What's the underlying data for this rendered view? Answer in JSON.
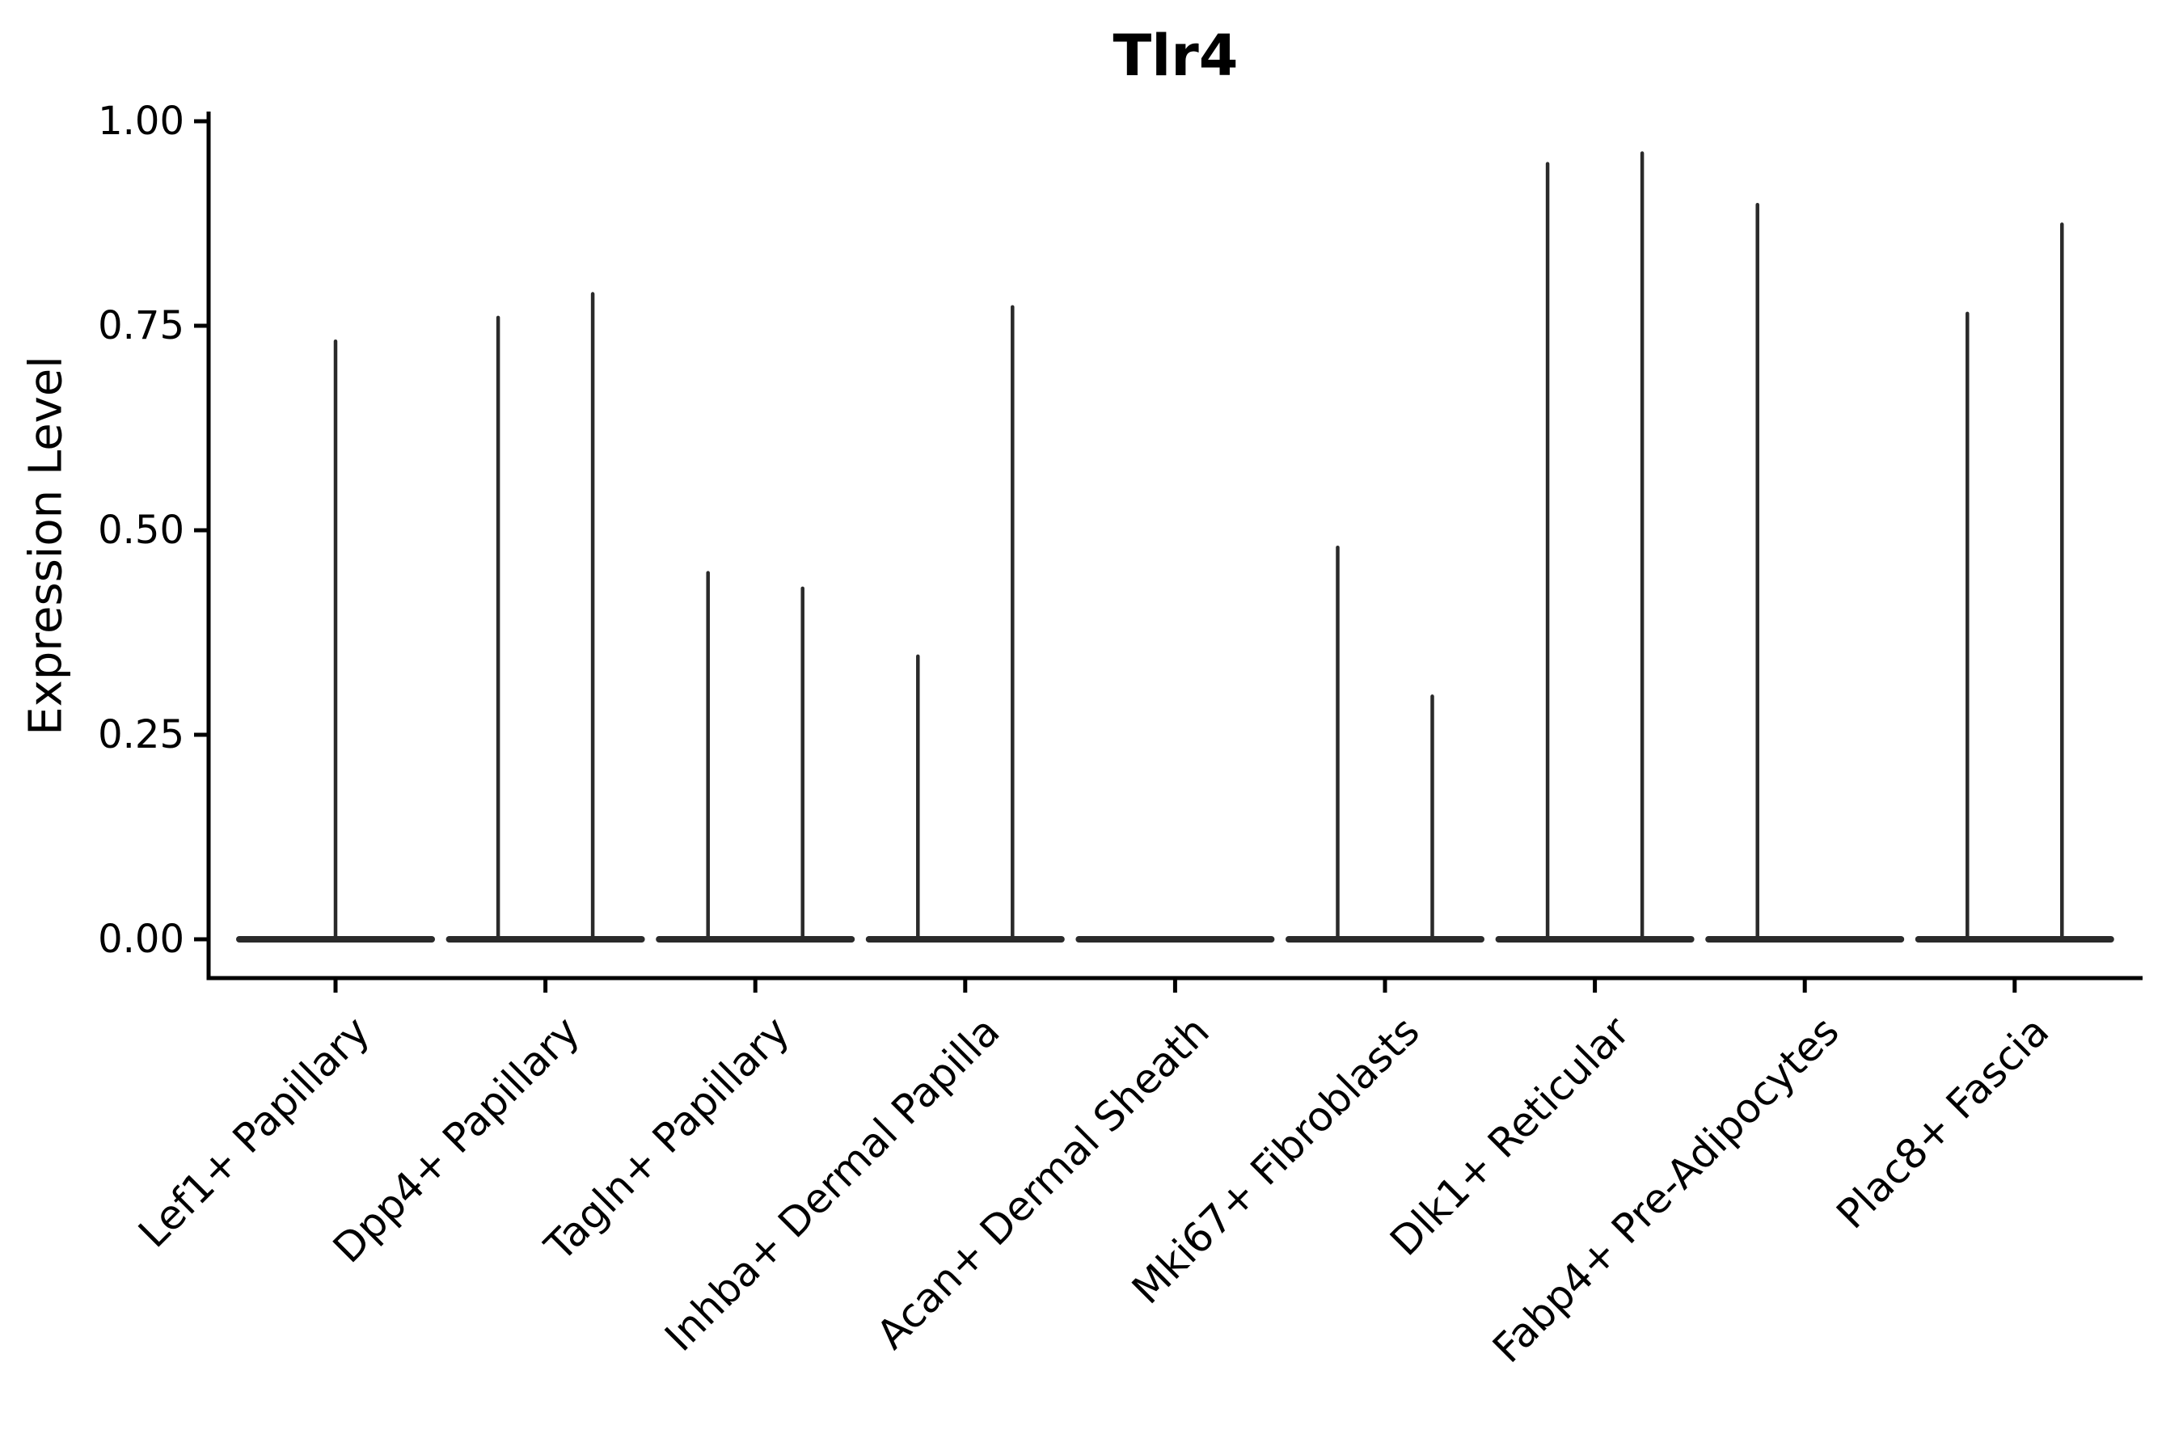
{
  "chart_data": {
    "type": "violin",
    "title": "Tlr4",
    "xlabel": "",
    "ylabel": "Expression Level",
    "ylim": [
      0,
      1.0
    ],
    "yticks": [
      {
        "label": "1.00",
        "value": 1.0
      },
      {
        "label": "0.75",
        "value": 0.75
      },
      {
        "label": "0.50",
        "value": 0.5
      },
      {
        "label": "0.25",
        "value": 0.25
      },
      {
        "label": "0.00",
        "value": 0.0
      }
    ],
    "grid": false,
    "legend_position": "none",
    "violin_color": "#2a2a2a",
    "axis_color": "#000000",
    "shape_note": "each violin is a flat bulk at expression 0 with a single thin vertical tail rising to its maximum value; categories with two groups show two side-by-side tails",
    "categories": [
      {
        "label": "Lef1+ Papillary",
        "spikes": [
          {
            "dodge": "center",
            "max": 0.731
          }
        ]
      },
      {
        "label": "Dpp4+ Papillary",
        "spikes": [
          {
            "dodge": "left",
            "max": 0.76
          },
          {
            "dodge": "right",
            "max": 0.789
          }
        ]
      },
      {
        "label": "Tagln+ Papillary",
        "spikes": [
          {
            "dodge": "left",
            "max": 0.448
          },
          {
            "dodge": "right",
            "max": 0.429
          }
        ]
      },
      {
        "label": "Inhba+ Dermal Papilla",
        "spikes": [
          {
            "dodge": "left",
            "max": 0.346
          },
          {
            "dodge": "right",
            "max": 0.773
          }
        ]
      },
      {
        "label": "Acan+ Dermal Sheath",
        "spikes": []
      },
      {
        "label": "Mki67+ Fibroblasts",
        "spikes": [
          {
            "dodge": "left",
            "max": 0.479
          },
          {
            "dodge": "right",
            "max": 0.297
          }
        ]
      },
      {
        "label": "Dlk1+ Reticular",
        "spikes": [
          {
            "dodge": "left",
            "max": 0.948
          },
          {
            "dodge": "right",
            "max": 0.961
          }
        ]
      },
      {
        "label": "Fabp4+ Pre-Adipocytes",
        "spikes": [
          {
            "dodge": "left",
            "max": 0.898
          }
        ]
      },
      {
        "label": "Plac8+ Fascia",
        "spikes": [
          {
            "dodge": "left",
            "max": 0.765
          },
          {
            "dodge": "right",
            "max": 0.874
          }
        ]
      }
    ]
  }
}
